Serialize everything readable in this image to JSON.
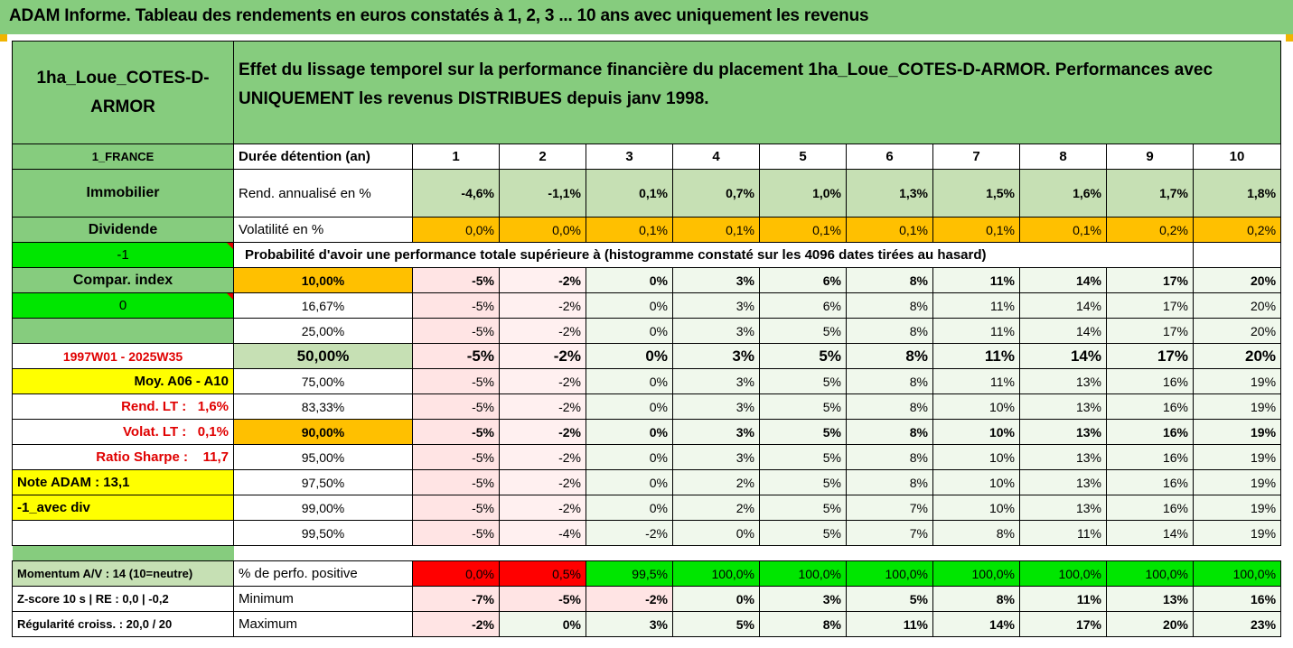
{
  "header": {
    "title": "ADAM Informe. Tableau des rendements en euros constatés à 1, 2, 3 ... 10 ans avec uniquement les revenus"
  },
  "fund": {
    "name": "1ha_Loue_COTES-D-ARMOR",
    "description_l1": "Effet du lissage temporel sur la performance financière du placement 1ha_Loue_COTES-D-ARMOR. Performances avec",
    "description_l2": "UNIQUEMENT les revenus DISTRIBUES depuis janv 1998.",
    "country": "1_FRANCE",
    "category": "Immobilier",
    "type": "Dividende",
    "code": "-1",
    "compar_label": "Compar. index",
    "compar_value": "0",
    "period": "1997W01 - 2025W35",
    "moy": "Moy. A06 - A10",
    "rend_lt": "Rend. LT :   1,6%",
    "volat_lt": "Volat. LT :   0,1%",
    "sharpe": "Ratio Sharpe :    11,7",
    "note": "Note ADAM : 13,1",
    "variant": "-1_avec div",
    "momentum": "Momentum A/V : 14 (10=neutre)",
    "zscore": "Z-score 10 s  | RE : 0,0  | -0,2",
    "regularite": "Régularité croiss. : 20,0 / 20"
  },
  "table": {
    "duree_label": "Durée détention (an)",
    "years": [
      "1",
      "2",
      "3",
      "4",
      "5",
      "6",
      "7",
      "8",
      "9",
      "10"
    ],
    "rend_label": "Rend. annualisé en %",
    "rend": [
      "-4,6%",
      "-1,1%",
      "0,1%",
      "0,7%",
      "1,0%",
      "1,3%",
      "1,5%",
      "1,6%",
      "1,7%",
      "1,8%"
    ],
    "vol_label": "Volatilité en %",
    "vol": [
      "0,0%",
      "0,0%",
      "0,1%",
      "0,1%",
      "0,1%",
      "0,1%",
      "0,1%",
      "0,1%",
      "0,2%",
      "0,2%"
    ],
    "proba_title": "Probabilité d'avoir une performance totale supérieure à (histogramme constaté sur les 4096 dates tirées au hasard)",
    "percentile_rows": [
      {
        "p": "10,00%",
        "v": [
          "-5%",
          "-2%",
          "0%",
          "3%",
          "6%",
          "8%",
          "11%",
          "14%",
          "17%",
          "20%"
        ]
      },
      {
        "p": "16,67%",
        "v": [
          "-5%",
          "-2%",
          "0%",
          "3%",
          "6%",
          "8%",
          "11%",
          "14%",
          "17%",
          "20%"
        ]
      },
      {
        "p": "25,00%",
        "v": [
          "-5%",
          "-2%",
          "0%",
          "3%",
          "5%",
          "8%",
          "11%",
          "14%",
          "17%",
          "20%"
        ]
      },
      {
        "p": "50,00%",
        "v": [
          "-5%",
          "-2%",
          "0%",
          "3%",
          "5%",
          "8%",
          "11%",
          "14%",
          "17%",
          "20%"
        ]
      },
      {
        "p": "75,00%",
        "v": [
          "-5%",
          "-2%",
          "0%",
          "3%",
          "5%",
          "8%",
          "11%",
          "13%",
          "16%",
          "19%"
        ]
      },
      {
        "p": "83,33%",
        "v": [
          "-5%",
          "-2%",
          "0%",
          "3%",
          "5%",
          "8%",
          "10%",
          "13%",
          "16%",
          "19%"
        ]
      },
      {
        "p": "90,00%",
        "v": [
          "-5%",
          "-2%",
          "0%",
          "3%",
          "5%",
          "8%",
          "10%",
          "13%",
          "16%",
          "19%"
        ]
      },
      {
        "p": "95,00%",
        "v": [
          "-5%",
          "-2%",
          "0%",
          "3%",
          "5%",
          "8%",
          "10%",
          "13%",
          "16%",
          "19%"
        ]
      },
      {
        "p": "97,50%",
        "v": [
          "-5%",
          "-2%",
          "0%",
          "2%",
          "5%",
          "8%",
          "10%",
          "13%",
          "16%",
          "19%"
        ]
      },
      {
        "p": "99,00%",
        "v": [
          "-5%",
          "-2%",
          "0%",
          "2%",
          "5%",
          "7%",
          "10%",
          "13%",
          "16%",
          "19%"
        ]
      },
      {
        "p": "99,50%",
        "v": [
          "-5%",
          "-4%",
          "-2%",
          "0%",
          "5%",
          "7%",
          "8%",
          "11%",
          "14%",
          "19%"
        ]
      }
    ],
    "pos_label": "% de perfo. positive",
    "pos": [
      "0,0%",
      "0,5%",
      "99,5%",
      "100,0%",
      "100,0%",
      "100,0%",
      "100,0%",
      "100,0%",
      "100,0%",
      "100,0%"
    ],
    "min_label": "Minimum",
    "min": [
      "-7%",
      "-5%",
      "-2%",
      "0%",
      "3%",
      "5%",
      "8%",
      "11%",
      "13%",
      "16%"
    ],
    "max_label": "Maximum",
    "max": [
      "-2%",
      "0%",
      "3%",
      "5%",
      "8%",
      "11%",
      "14%",
      "17%",
      "20%",
      "23%"
    ]
  },
  "colors": {
    "header_green": "#86cc7e",
    "light_green": "#c6e0b4",
    "orange": "#ffc000",
    "bright_green": "#00e600",
    "yellow": "#ffff00",
    "red": "#ff0000"
  }
}
